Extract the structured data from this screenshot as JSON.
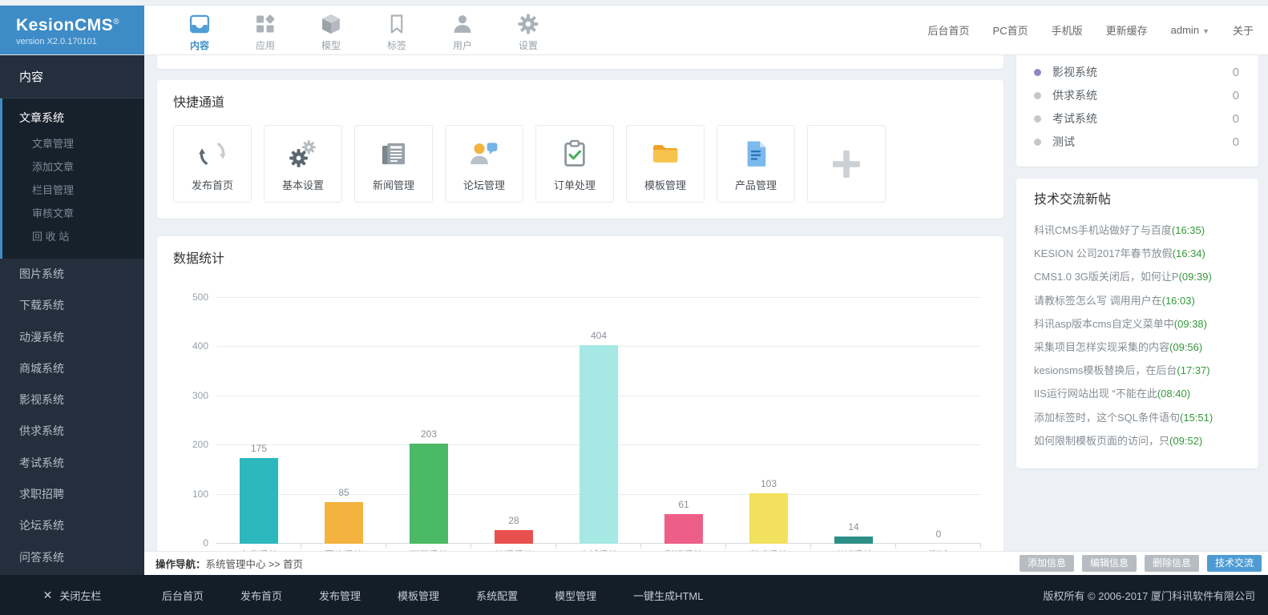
{
  "header": {
    "logo": {
      "title": "KesionCMS",
      "reg": "®",
      "version": "version X2.0.170101"
    },
    "nav": [
      {
        "key": "content",
        "label": "内容",
        "icon": "content-icon",
        "active": true
      },
      {
        "key": "apps",
        "label": "应用",
        "icon": "apps-icon",
        "active": false
      },
      {
        "key": "model",
        "label": "模型",
        "icon": "model-icon",
        "active": false
      },
      {
        "key": "tag",
        "label": "标签",
        "icon": "tag-icon",
        "active": false
      },
      {
        "key": "user",
        "label": "用户",
        "icon": "user-icon",
        "active": false
      },
      {
        "key": "settings",
        "label": "设置",
        "icon": "settings-icon",
        "active": false
      }
    ],
    "links": [
      {
        "key": "admin-home",
        "label": "后台首页",
        "dropdown": false
      },
      {
        "key": "pc-home",
        "label": "PC首页",
        "dropdown": false
      },
      {
        "key": "mobile",
        "label": "手机版",
        "dropdown": false
      },
      {
        "key": "refresh-cache",
        "label": "更新缓存",
        "dropdown": false
      },
      {
        "key": "admin",
        "label": "admin",
        "dropdown": true
      },
      {
        "key": "about",
        "label": "关于",
        "dropdown": false
      }
    ]
  },
  "sidebar": {
    "section_title": "内容",
    "active_group": {
      "key": "article-system",
      "label": "文章系统",
      "children": [
        {
          "key": "article-manage",
          "label": "文章管理"
        },
        {
          "key": "article-add",
          "label": "添加文章"
        },
        {
          "key": "column-manage",
          "label": "栏目管理"
        },
        {
          "key": "article-review",
          "label": "审核文章"
        },
        {
          "key": "recycle-bin",
          "label": "回 收 站"
        }
      ]
    },
    "items": [
      {
        "key": "image-system",
        "label": "图片系统"
      },
      {
        "key": "download-system",
        "label": "下载系统"
      },
      {
        "key": "anime-system",
        "label": "动漫系统"
      },
      {
        "key": "mall-system",
        "label": "商城系统"
      },
      {
        "key": "video-system",
        "label": "影视系统"
      },
      {
        "key": "supply-system",
        "label": "供求系统"
      },
      {
        "key": "exam-system",
        "label": "考试系统"
      },
      {
        "key": "job-system",
        "label": "求职招聘"
      },
      {
        "key": "forum-system",
        "label": "论坛系统"
      },
      {
        "key": "qa-system",
        "label": "问答系统"
      }
    ]
  },
  "quick": {
    "title": "快捷通道",
    "tiles": [
      {
        "key": "publish-home",
        "label": "发布首页",
        "icon": "refresh-icon"
      },
      {
        "key": "basic-settings",
        "label": "基本设置",
        "icon": "gears-icon"
      },
      {
        "key": "news-manage",
        "label": "新闻管理",
        "icon": "newspaper-icon"
      },
      {
        "key": "forum-manage",
        "label": "论坛管理",
        "icon": "forum-icon"
      },
      {
        "key": "order-process",
        "label": "订单处理",
        "icon": "order-icon"
      },
      {
        "key": "template-manage",
        "label": "模板管理",
        "icon": "folder-icon"
      },
      {
        "key": "product-manage",
        "label": "产品管理",
        "icon": "doc-icon"
      },
      {
        "key": "add-tile",
        "label": "",
        "icon": "plus-icon"
      }
    ]
  },
  "stats": {
    "title": "数据统计"
  },
  "chart_data": {
    "type": "bar",
    "title": "数据统计",
    "categories": [
      "文章系统",
      "图片系统",
      "下载系统",
      "动漫系统",
      "商城系统",
      "影视系统",
      "供求系统",
      "考试系统",
      "测试"
    ],
    "values": [
      175,
      85,
      203,
      28,
      404,
      61,
      103,
      14,
      0
    ],
    "colors": [
      "#2cb8bd",
      "#f4b23e",
      "#4cb966",
      "#e8504f",
      "#a5e8e4",
      "#ee5f87",
      "#f2e15c",
      "#2d8f86",
      "#cccccc"
    ],
    "xlabel": "",
    "ylabel": "",
    "ylim": [
      0,
      500
    ],
    "yticks": [
      0,
      100,
      200,
      300,
      400,
      500
    ],
    "grid": true,
    "legend": false
  },
  "right_panel": {
    "counters": [
      {
        "label": "影视系统",
        "value": "0",
        "dot": "#8c8ac6"
      },
      {
        "label": "供求系统",
        "value": "0",
        "dot": "#c4c8cd"
      },
      {
        "label": "考试系统",
        "value": "0",
        "dot": "#c4c8cd"
      },
      {
        "label": "测试",
        "value": "0",
        "dot": "#c4c8cd"
      }
    ],
    "posts": {
      "title": "技术交流新帖",
      "items": [
        {
          "title": "科讯CMS手机站做好了与百度",
          "time": "(16:35)"
        },
        {
          "title": "KESION 公司2017年春节放假",
          "time": "(16:34)"
        },
        {
          "title": "CMS1.0 3G版关闭后，如何让P",
          "time": "(09:39)"
        },
        {
          "title": "请教标签怎么写 调用用户在",
          "time": "(16:03)"
        },
        {
          "title": "科讯asp版本cms自定义菜单中",
          "time": "(09:38)"
        },
        {
          "title": "采集项目怎样实现采集的内容",
          "time": "(09:56)"
        },
        {
          "title": "kesionsms模板替换后，在后台",
          "time": "(17:37)"
        },
        {
          "title": "IIS运行网站出现 “不能在此",
          "time": "(08:40)"
        },
        {
          "title": "添加标签时，这个SQL条件语句",
          "time": "(15:51)"
        },
        {
          "title": "如何限制模板页面的访问，只",
          "time": "(09:52)"
        }
      ]
    }
  },
  "opbar": {
    "nav_label": "操作导航：",
    "breadcrumb": "系统管理中心 >> 首页",
    "buttons": [
      {
        "key": "add-info",
        "label": "添加信息",
        "type": "gray"
      },
      {
        "key": "edit-info",
        "label": "编辑信息",
        "type": "gray"
      },
      {
        "key": "delete-info",
        "label": "删除信息",
        "type": "gray"
      },
      {
        "key": "tech-exchange",
        "label": "技术交流",
        "type": "blue"
      }
    ]
  },
  "footer": {
    "close_label": "关闭左栏",
    "links": [
      {
        "key": "admin-home",
        "label": "后台首页"
      },
      {
        "key": "publish-home",
        "label": "发布首页"
      },
      {
        "key": "publish-manage",
        "label": "发布管理"
      },
      {
        "key": "template-manage",
        "label": "模板管理"
      },
      {
        "key": "system-config",
        "label": "系统配置"
      },
      {
        "key": "model-manage",
        "label": "模型管理"
      },
      {
        "key": "generate-html",
        "label": "一键生成HTML"
      }
    ],
    "copyright": "版权所有 © 2006-2017 厦门科讯软件有限公司"
  },
  "colors": {
    "accent_blue": "#3e8dc5",
    "sidebar_bg": "#232f3d",
    "footer_bg": "#141e29",
    "time_green": "#36973c",
    "button_gray": "#b6bcc2",
    "button_blue": "#4e9bd4",
    "page_bg": "#edf0f4"
  }
}
